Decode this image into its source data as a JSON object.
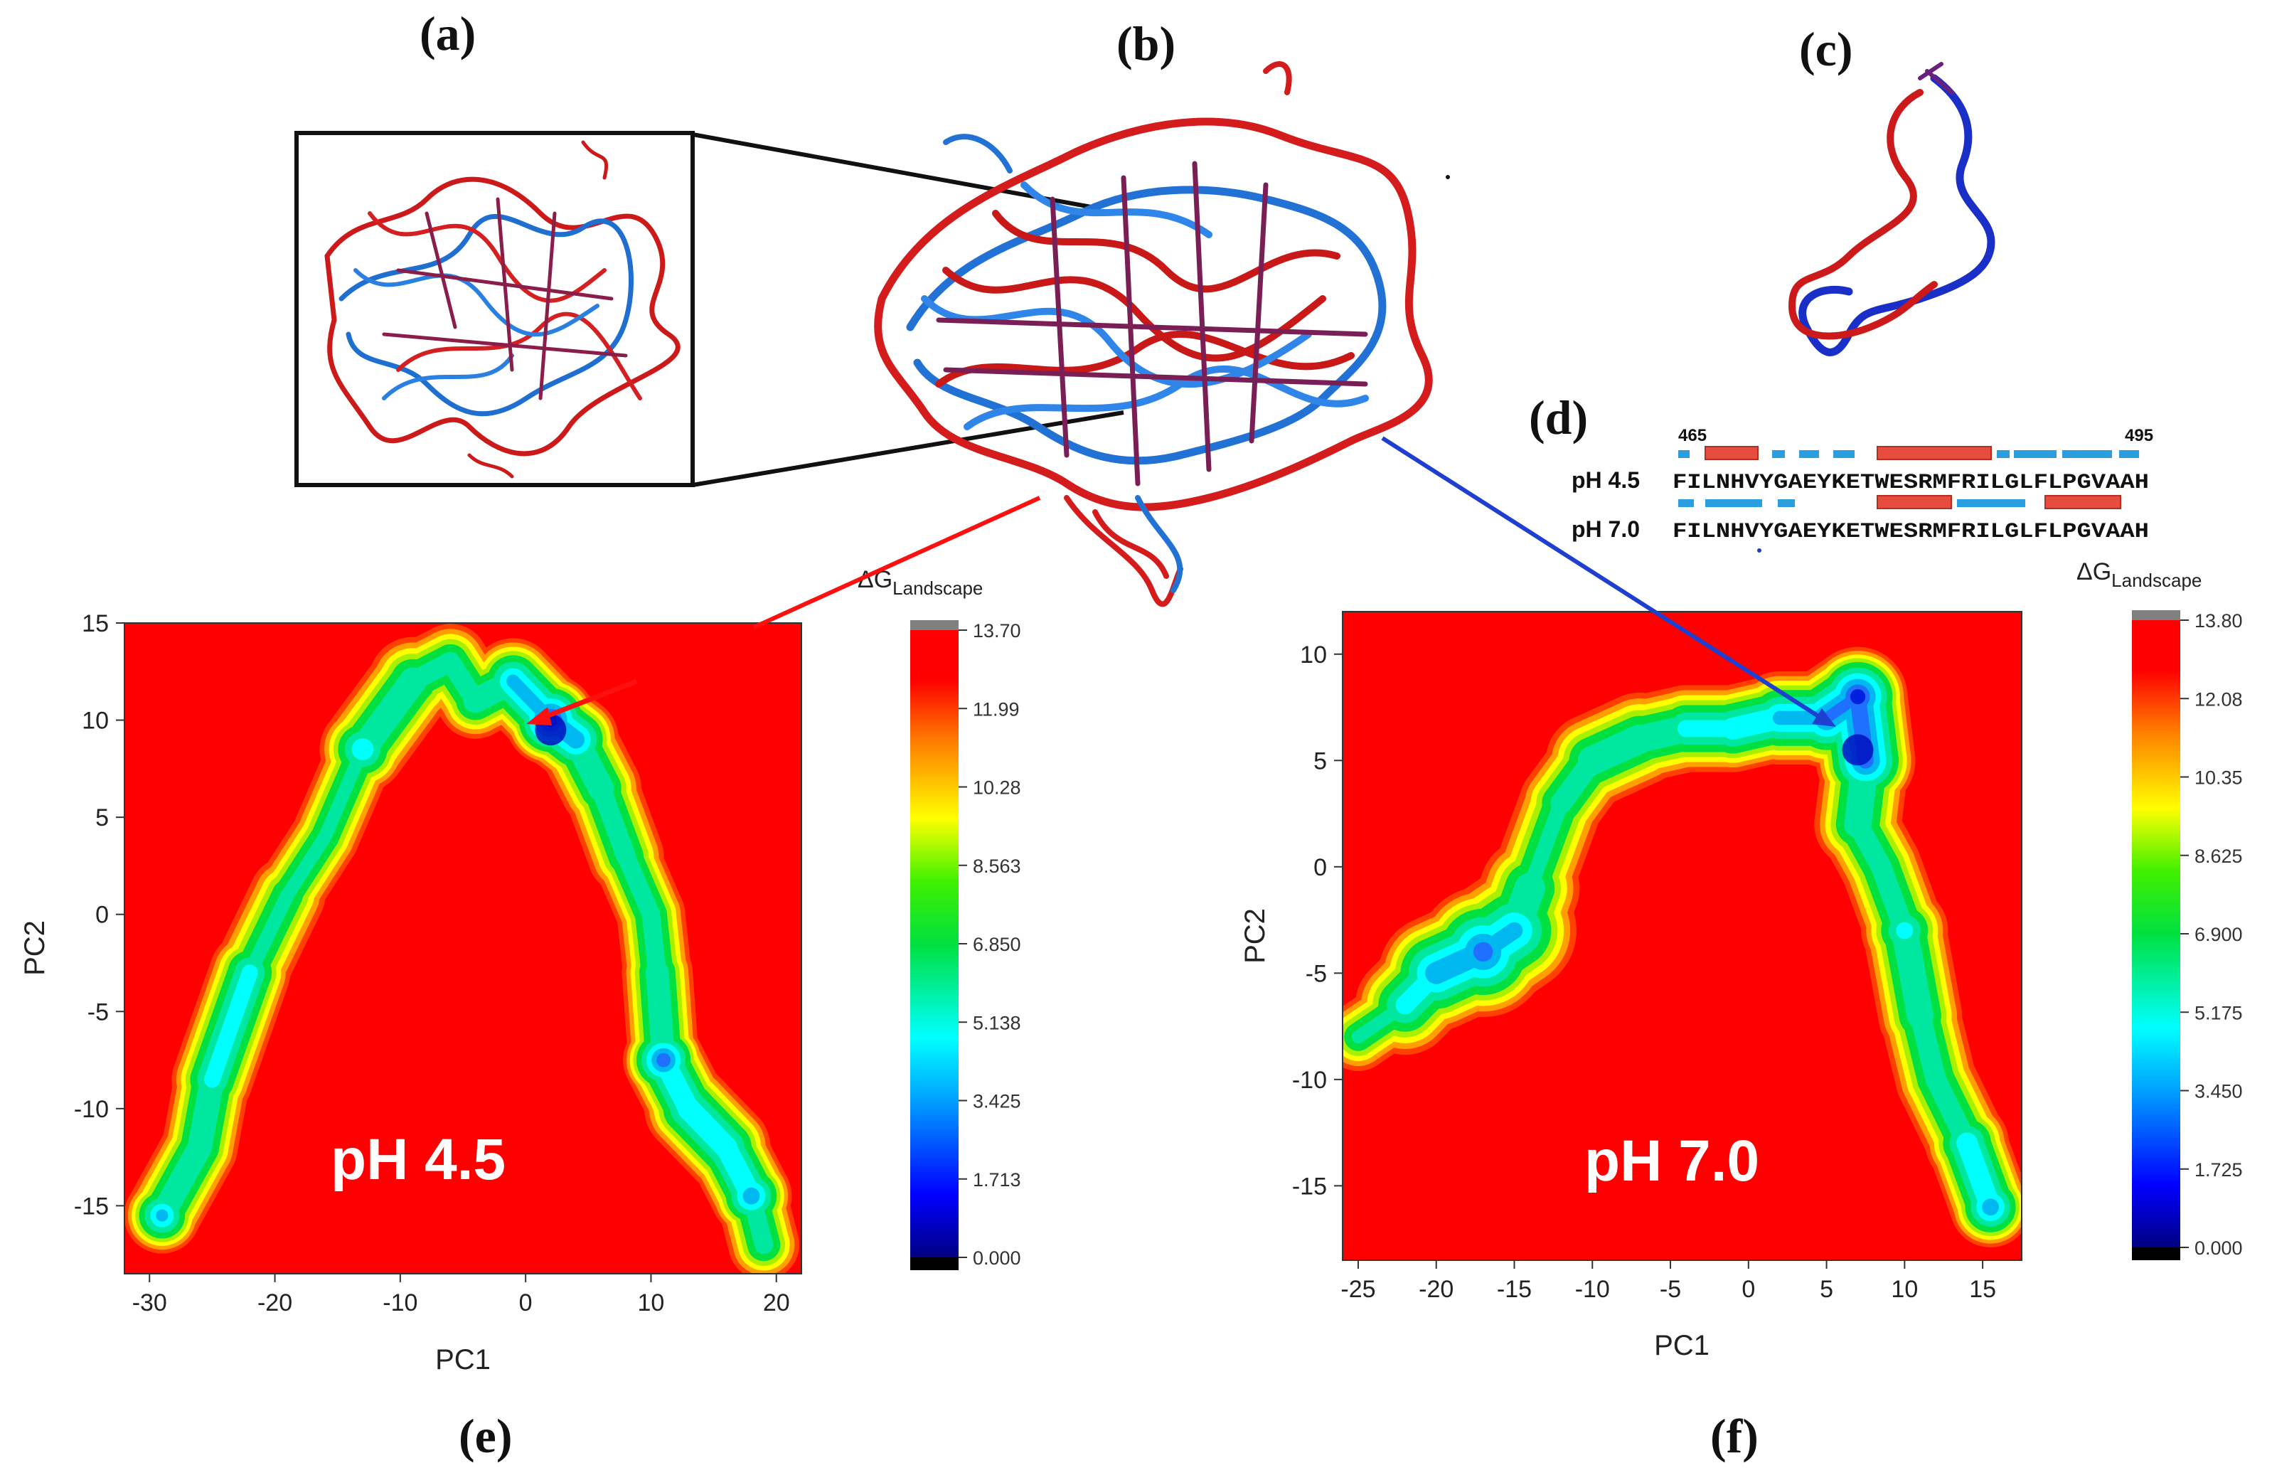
{
  "panel_labels": {
    "a": "(a)",
    "b": "(b)",
    "c": "(c)",
    "d": "(d)",
    "e": "(e)",
    "f": "(f)"
  },
  "sequence": {
    "start": "465",
    "end": "495",
    "rows": [
      {
        "label": "pH 4.5",
        "seq": "FILNHVYGAEYKETWESRMFRILGLFLPGVAAH"
      },
      {
        "label": "pH 7.0",
        "seq": "FILNHVYGAEYKETWESRMFRILGLFLPGVAAH"
      }
    ]
  },
  "colors": {
    "red": "#ff0000",
    "blue": "#1f5fd0",
    "helix": "#e84c3d",
    "strand": "#2a9fe0"
  },
  "chart_data": [
    {
      "type": "heatmap",
      "panel": "e",
      "annotation": "pH 4.5",
      "xlabel": "PC1",
      "ylabel": "PC2",
      "xlim": [
        -32,
        22
      ],
      "ylim": [
        -18.5,
        15
      ],
      "xticks": [
        -30,
        -20,
        -10,
        0,
        10,
        20
      ],
      "yticks": [
        -15,
        -10,
        -5,
        0,
        5,
        10,
        15
      ],
      "colorbar": {
        "title": "ΔG",
        "subscript": "Landscape",
        "ticks": [
          "13.70",
          "11.99",
          "10.28",
          "8.563",
          "6.850",
          "5.138",
          "3.425",
          "1.713",
          "0.000"
        ]
      },
      "minimum_basin": [
        2,
        9.5
      ],
      "ridge": [
        [
          -29,
          -15.5
        ],
        [
          -26,
          -12
        ],
        [
          -25,
          -8.5
        ],
        [
          -22,
          -3
        ],
        [
          -19,
          1
        ],
        [
          -16,
          4
        ],
        [
          -13,
          8.5
        ],
        [
          -9,
          12
        ],
        [
          -6,
          13
        ],
        [
          -4,
          11
        ],
        [
          -1,
          12
        ],
        [
          2,
          10
        ],
        [
          4,
          9
        ],
        [
          6,
          6.5
        ],
        [
          8,
          3
        ],
        [
          10,
          0
        ],
        [
          10.5,
          -3
        ],
        [
          11,
          -7.5
        ],
        [
          13,
          -10
        ],
        [
          16,
          -12
        ],
        [
          18,
          -14.5
        ],
        [
          19,
          -17
        ]
      ],
      "ridge_width": [
        2.8,
        2.8,
        3,
        3,
        2.8,
        2.5,
        3.2,
        3.3,
        2.8,
        2.8,
        3.2,
        3.4,
        3.2,
        3,
        2.8,
        2.5,
        2.6,
        3,
        3.3,
        3.3,
        3,
        2.6
      ],
      "ridge_depth": [
        0.7,
        0.55,
        0.6,
        0.6,
        0.45,
        0.45,
        0.65,
        0.55,
        0.5,
        0.55,
        0.7,
        0.95,
        0.75,
        0.55,
        0.5,
        0.5,
        0.55,
        0.85,
        0.65,
        0.65,
        0.75,
        0.5
      ]
    },
    {
      "type": "heatmap",
      "panel": "f",
      "annotation": "pH 7.0",
      "xlabel": "PC1",
      "ylabel": "PC2",
      "xlim": [
        -26,
        17.5
      ],
      "ylim": [
        -18.5,
        12
      ],
      "xticks": [
        -25,
        -20,
        -15,
        -10,
        -5,
        0,
        5,
        10,
        15
      ],
      "yticks": [
        -15,
        -10,
        -5,
        0,
        5,
        10
      ],
      "colorbar": {
        "title": "ΔG",
        "subscript": "Landscape",
        "ticks": [
          "13.80",
          "12.08",
          "10.35",
          "8.625",
          "6.900",
          "5.175",
          "3.450",
          "1.725",
          "0.000"
        ]
      },
      "minimum_basin": [
        7,
        5.5
      ],
      "ridge": [
        [
          -25,
          -8
        ],
        [
          -22,
          -6.5
        ],
        [
          -20,
          -5
        ],
        [
          -17,
          -4
        ],
        [
          -15,
          -3
        ],
        [
          -14,
          -1
        ],
        [
          -13,
          1
        ],
        [
          -12,
          3
        ],
        [
          -10,
          5
        ],
        [
          -7,
          6
        ],
        [
          -4,
          6.5
        ],
        [
          -1,
          6.5
        ],
        [
          2,
          7
        ],
        [
          5,
          7
        ],
        [
          7,
          8
        ],
        [
          7.5,
          5
        ],
        [
          7,
          2
        ],
        [
          8.5,
          0
        ],
        [
          10,
          -3
        ],
        [
          11,
          -7
        ],
        [
          12,
          -10
        ],
        [
          14,
          -13
        ],
        [
          15.5,
          -16
        ]
      ],
      "ridge_width": [
        2,
        3,
        3.5,
        4,
        3.8,
        3,
        2.5,
        2.5,
        2.8,
        2.8,
        2.6,
        2.6,
        2.8,
        3,
        3,
        3,
        2.6,
        2.4,
        2.6,
        2.5,
        2.4,
        2.5,
        2.4
      ],
      "ridge_depth": [
        0.45,
        0.6,
        0.75,
        0.85,
        0.7,
        0.55,
        0.45,
        0.5,
        0.55,
        0.55,
        0.6,
        0.65,
        0.7,
        0.8,
        0.95,
        0.85,
        0.55,
        0.5,
        0.6,
        0.55,
        0.5,
        0.65,
        0.75
      ]
    }
  ]
}
